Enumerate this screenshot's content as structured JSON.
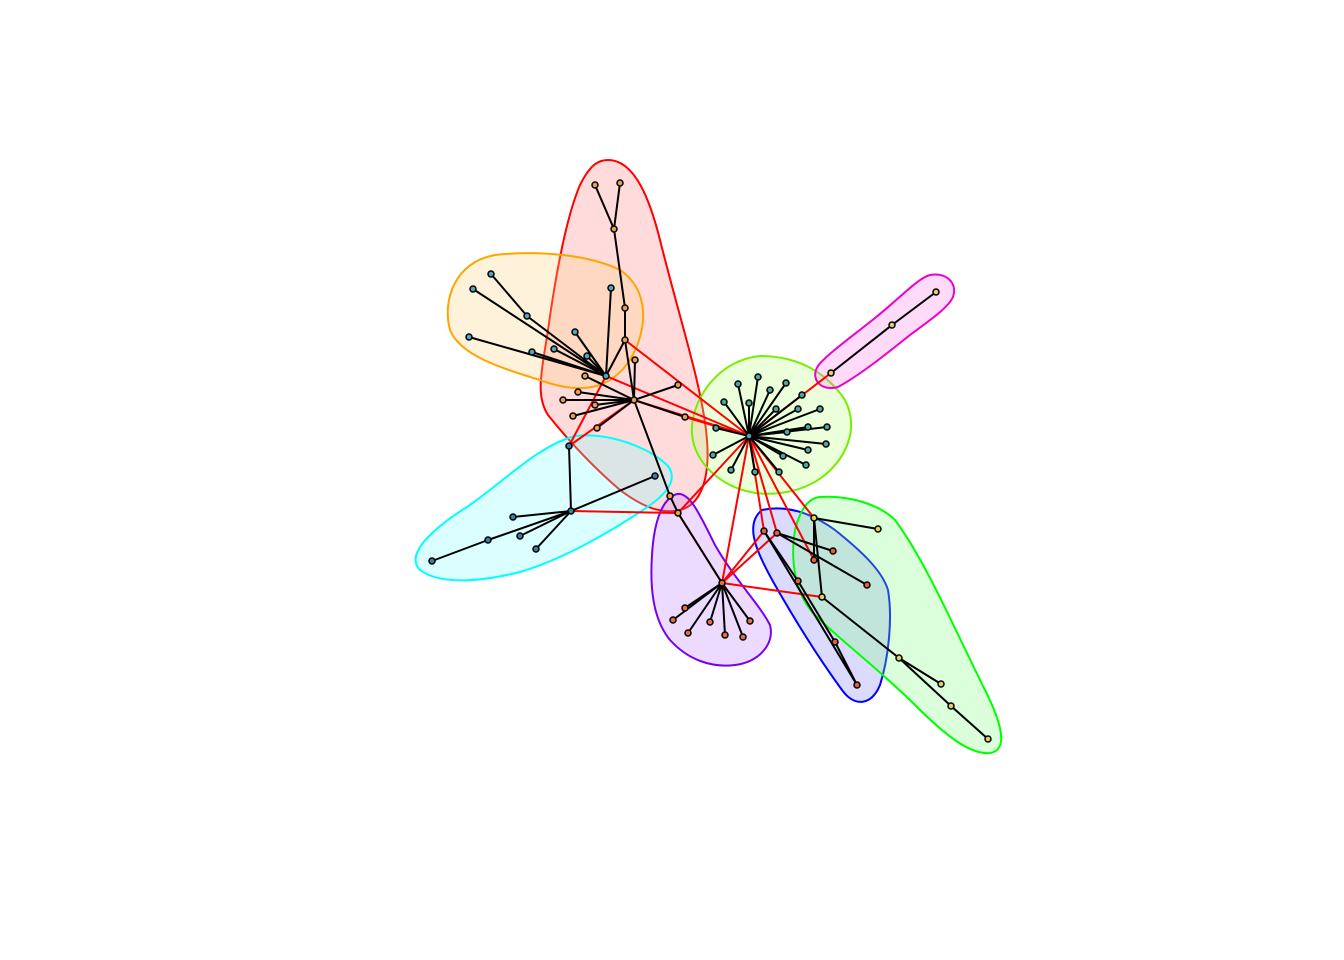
{
  "figure": {
    "kind": "community-graph",
    "communities": [
      {
        "id": "red",
        "color": "#ff0000",
        "fill": "#ff7f7f",
        "node_color": "#e8a050"
      },
      {
        "id": "orange",
        "color": "#ffa500",
        "fill": "#ffd27f",
        "node_color": "#4aa8c8"
      },
      {
        "id": "green",
        "color": "#77ee00",
        "fill": "#bbff7f",
        "node_color": "#4aa8a0"
      },
      {
        "id": "magenta",
        "color": "#ee00cc",
        "fill": "#ff7fee",
        "node_color": "#e8c870"
      },
      {
        "id": "cyan",
        "color": "#00ffff",
        "fill": "#7fffff",
        "node_color": "#3a7fa8"
      },
      {
        "id": "purple",
        "color": "#7700ee",
        "fill": "#bb7fff",
        "node_color": "#e87040"
      },
      {
        "id": "blue",
        "color": "#0000ff",
        "fill": "#7f7fff",
        "node_color": "#e86030"
      },
      {
        "id": "lime",
        "color": "#00ff00",
        "fill": "#7fff7f",
        "node_color": "#e8d060"
      }
    ]
  }
}
